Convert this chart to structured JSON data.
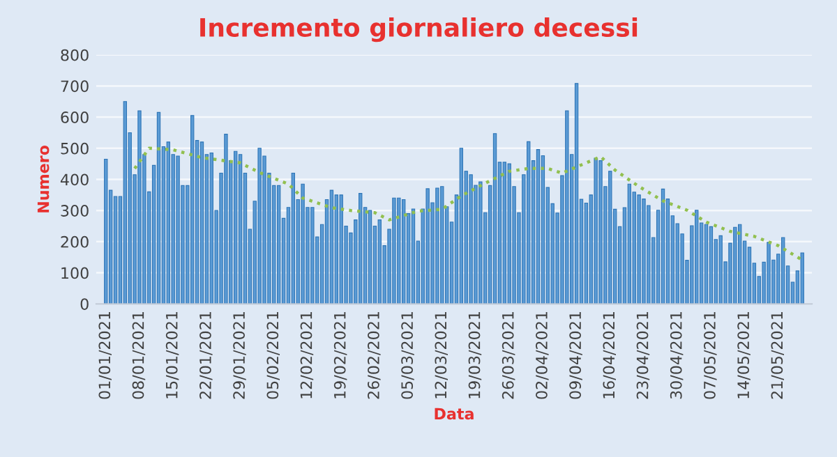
{
  "chart_data": {
    "type": "bar",
    "title": "Incremento giornaliero decessi",
    "xlabel": "Data",
    "ylabel": "Numero",
    "x": [
      "2021-01-01",
      "2021-01-02",
      "2021-01-03",
      "2021-01-04",
      "2021-01-05",
      "2021-01-06",
      "2021-01-07",
      "2021-01-08",
      "2021-01-09",
      "2021-01-10",
      "2021-01-11",
      "2021-01-12",
      "2021-01-13",
      "2021-01-14",
      "2021-01-15",
      "2021-01-16",
      "2021-01-17",
      "2021-01-18",
      "2021-01-19",
      "2021-01-20",
      "2021-01-21",
      "2021-01-22",
      "2021-01-23",
      "2021-01-24",
      "2021-01-25",
      "2021-01-26",
      "2021-01-27",
      "2021-01-28",
      "2021-01-29",
      "2021-01-30",
      "2021-01-31",
      "2021-02-01",
      "2021-02-02",
      "2021-02-03",
      "2021-02-04",
      "2021-02-05",
      "2021-02-06",
      "2021-02-07",
      "2021-02-08",
      "2021-02-09",
      "2021-02-10",
      "2021-02-11",
      "2021-02-12",
      "2021-02-13",
      "2021-02-14",
      "2021-02-15",
      "2021-02-16",
      "2021-02-17",
      "2021-02-18",
      "2021-02-19",
      "2021-02-20",
      "2021-02-21",
      "2021-02-22",
      "2021-02-23",
      "2021-02-24",
      "2021-02-25",
      "2021-02-26",
      "2021-02-27",
      "2021-02-28",
      "2021-03-01",
      "2021-03-02",
      "2021-03-03",
      "2021-03-04",
      "2021-03-05",
      "2021-03-06",
      "2021-03-07",
      "2021-03-08",
      "2021-03-09",
      "2021-03-10",
      "2021-03-11",
      "2021-03-12",
      "2021-03-13",
      "2021-03-14",
      "2021-03-15",
      "2021-03-16",
      "2021-03-17",
      "2021-03-18",
      "2021-03-19",
      "2021-03-20",
      "2021-03-21",
      "2021-03-22",
      "2021-03-23",
      "2021-03-24",
      "2021-03-25",
      "2021-03-26",
      "2021-03-27",
      "2021-03-28",
      "2021-03-29",
      "2021-03-30",
      "2021-03-31",
      "2021-04-01",
      "2021-04-02",
      "2021-04-03",
      "2021-04-04",
      "2021-04-05",
      "2021-04-06",
      "2021-04-07",
      "2021-04-08",
      "2021-04-09",
      "2021-04-10",
      "2021-04-11",
      "2021-04-12",
      "2021-04-13",
      "2021-04-14",
      "2021-04-15",
      "2021-04-16",
      "2021-04-17",
      "2021-04-18",
      "2021-04-19",
      "2021-04-20",
      "2021-04-21",
      "2021-04-22",
      "2021-04-23",
      "2021-04-24",
      "2021-04-25",
      "2021-04-26",
      "2021-04-27",
      "2021-04-28",
      "2021-04-29",
      "2021-04-30",
      "2021-05-01",
      "2021-05-02",
      "2021-05-03",
      "2021-05-04",
      "2021-05-05",
      "2021-05-06",
      "2021-05-07",
      "2021-05-08",
      "2021-05-09",
      "2021-05-10",
      "2021-05-11",
      "2021-05-12",
      "2021-05-13",
      "2021-05-14",
      "2021-05-15",
      "2021-05-16",
      "2021-05-17",
      "2021-05-18",
      "2021-05-19",
      "2021-05-20",
      "2021-05-21",
      "2021-05-22",
      "2021-05-23",
      "2021-05-24",
      "2021-05-25",
      "2021-05-26"
    ],
    "series": [
      {
        "color": "#5b9bd5",
        "values": [
          465,
          365,
          345,
          345,
          650,
          550,
          415,
          620,
          480,
          360,
          445,
          615,
          505,
          520,
          480,
          475,
          380,
          380,
          605,
          525,
          520,
          480,
          485,
          300,
          420,
          545,
          460,
          490,
          480,
          420,
          240,
          330,
          500,
          475,
          420,
          380,
          380,
          275,
          310,
          420,
          335,
          385,
          310,
          310,
          215,
          255,
          335,
          365,
          350,
          350,
          250,
          228,
          270,
          355,
          310,
          300,
          250,
          270,
          187,
          240,
          340,
          340,
          335,
          290,
          305,
          202,
          305,
          370,
          325,
          372,
          377,
          312,
          263,
          350,
          500,
          426,
          415,
          381,
          392,
          293,
          380,
          547,
          455,
          455,
          450,
          377,
          293,
          415,
          521,
          460,
          496,
          476,
          374,
          322,
          292,
          412,
          620,
          480,
          708,
          336,
          324,
          350,
          468,
          460,
          377,
          426,
          304,
          248,
          309,
          385,
          359,
          350,
          337,
          316,
          213,
          301,
          369,
          337,
          283,
          258,
          225,
          140,
          251,
          301,
          260,
          255,
          248,
          207,
          219,
          135,
          195,
          246,
          255,
          202,
          182,
          131,
          88,
          134,
          198,
          141,
          160,
          213,
          122,
          70,
          106,
          164
        ]
      },
      {
        "type": "line",
        "color": "#92c050",
        "line_style": "dotted",
        "marker": "none",
        "x": [
          "2021-01-07",
          "2021-01-10",
          "2021-01-15",
          "2021-01-21",
          "2021-01-29",
          "2021-02-02",
          "2021-02-08",
          "2021-02-11",
          "2021-02-17",
          "2021-02-21",
          "2021-02-26",
          "2021-03-01",
          "2021-03-07",
          "2021-03-12",
          "2021-03-16",
          "2021-03-21",
          "2021-03-26",
          "2021-03-30",
          "2021-04-03",
          "2021-04-06",
          "2021-04-14",
          "2021-04-17",
          "2021-04-22",
          "2021-04-27",
          "2021-05-02",
          "2021-05-06",
          "2021-05-11",
          "2021-05-16",
          "2021-05-21",
          "2021-05-26"
        ],
        "values": [
          435,
          500,
          495,
          470,
          453,
          422,
          385,
          340,
          309,
          300,
          293,
          270,
          298,
          304,
          347,
          388,
          426,
          435,
          435,
          420,
          473,
          430,
          377,
          331,
          301,
          263,
          233,
          217,
          187,
          141
        ]
      }
    ],
    "xlim": [
      "2020-12-30",
      "2021-05-28"
    ],
    "xticks": [
      {
        "value": "2021-01-01",
        "label": "01/01/2021"
      },
      {
        "value": "2021-01-08",
        "label": "08/01/2021"
      },
      {
        "value": "2021-01-15",
        "label": "15/01/2021"
      },
      {
        "value": "2021-01-22",
        "label": "22/01/2021"
      },
      {
        "value": "2021-01-29",
        "label": "29/01/2021"
      },
      {
        "value": "2021-02-05",
        "label": "05/02/2021"
      },
      {
        "value": "2021-02-12",
        "label": "12/02/2021"
      },
      {
        "value": "2021-02-19",
        "label": "19/02/2021"
      },
      {
        "value": "2021-02-26",
        "label": "26/02/2021"
      },
      {
        "value": "2021-03-05",
        "label": "05/03/2021"
      },
      {
        "value": "2021-03-12",
        "label": "12/03/2021"
      },
      {
        "value": "2021-03-19",
        "label": "19/03/2021"
      },
      {
        "value": "2021-03-26",
        "label": "26/03/2021"
      },
      {
        "value": "2021-04-02",
        "label": "02/04/2021"
      },
      {
        "value": "2021-04-09",
        "label": "09/04/2021"
      },
      {
        "value": "2021-04-16",
        "label": "16/04/2021"
      },
      {
        "value": "2021-04-23",
        "label": "23/04/2021"
      },
      {
        "value": "2021-04-30",
        "label": "30/04/2021"
      },
      {
        "value": "2021-05-07",
        "label": "07/05/2021"
      },
      {
        "value": "2021-05-14",
        "label": "14/05/2021"
      },
      {
        "value": "2021-05-21",
        "label": "21/05/2021"
      }
    ],
    "ylim": [
      0,
      800
    ],
    "yticks": [
      0,
      100,
      200,
      300,
      400,
      500,
      600,
      700,
      800
    ],
    "grid": "y",
    "legend": false
  }
}
